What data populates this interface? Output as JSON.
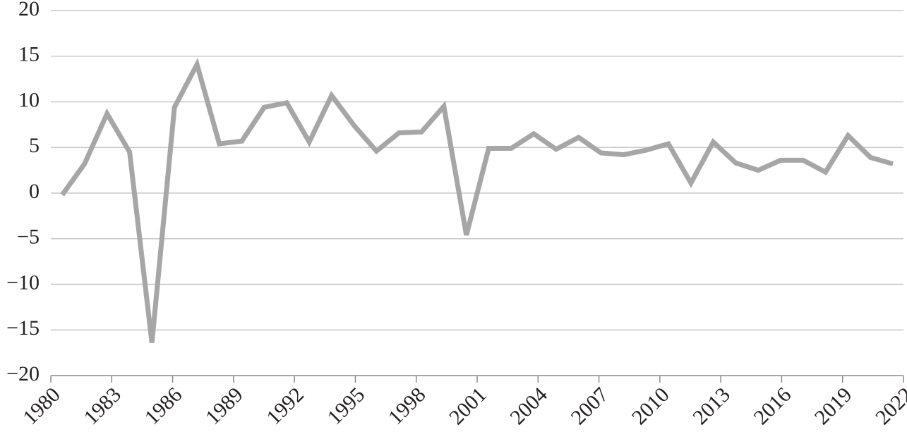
{
  "chart_data": {
    "type": "line",
    "x": [
      1980.56,
      1981.66,
      1982.77,
      1983.88,
      1984.98,
      1986.09,
      1987.2,
      1988.3,
      1989.41,
      1990.51,
      1991.62,
      1992.73,
      1993.83,
      1994.94,
      1996.04,
      1997.15,
      1998.26,
      1999.36,
      2000.47,
      2001.57,
      2002.68,
      2003.79,
      2004.89,
      2006.0,
      2007.1,
      2008.21,
      2009.32,
      2010.42,
      2011.53,
      2012.63,
      2013.74,
      2014.85,
      2015.95,
      2017.06,
      2018.16,
      2019.27,
      2020.38,
      2021.48
    ],
    "values": [
      -0.2,
      3.2,
      8.7,
      4.5,
      -16.4,
      9.4,
      14.1,
      5.4,
      5.7,
      9.4,
      9.9,
      5.6,
      10.7,
      7.4,
      4.6,
      6.6,
      6.7,
      9.5,
      -4.6,
      4.9,
      4.9,
      6.5,
      4.8,
      6.1,
      4.4,
      4.2,
      4.7,
      5.4,
      1.1,
      5.6,
      3.3,
      2.5,
      3.6,
      3.6,
      2.3,
      6.3,
      3.9,
      3.2
    ],
    "color": "#a6a6a6",
    "xlim": [
      1980,
      2022
    ],
    "xticks": [
      1980,
      1983,
      1986,
      1989,
      1992,
      1995,
      1998,
      2001,
      2004,
      2007,
      2010,
      2013,
      2016,
      2019,
      2022
    ],
    "ylim": [
      -20,
      20
    ],
    "yticks": [
      {
        "value": -20,
        "label": "−20"
      },
      {
        "value": -15,
        "label": "−15"
      },
      {
        "value": -10,
        "label": "−10"
      },
      {
        "value": -5,
        "label": "−5"
      },
      0,
      5,
      10,
      15,
      20
    ],
    "grid": true
  }
}
